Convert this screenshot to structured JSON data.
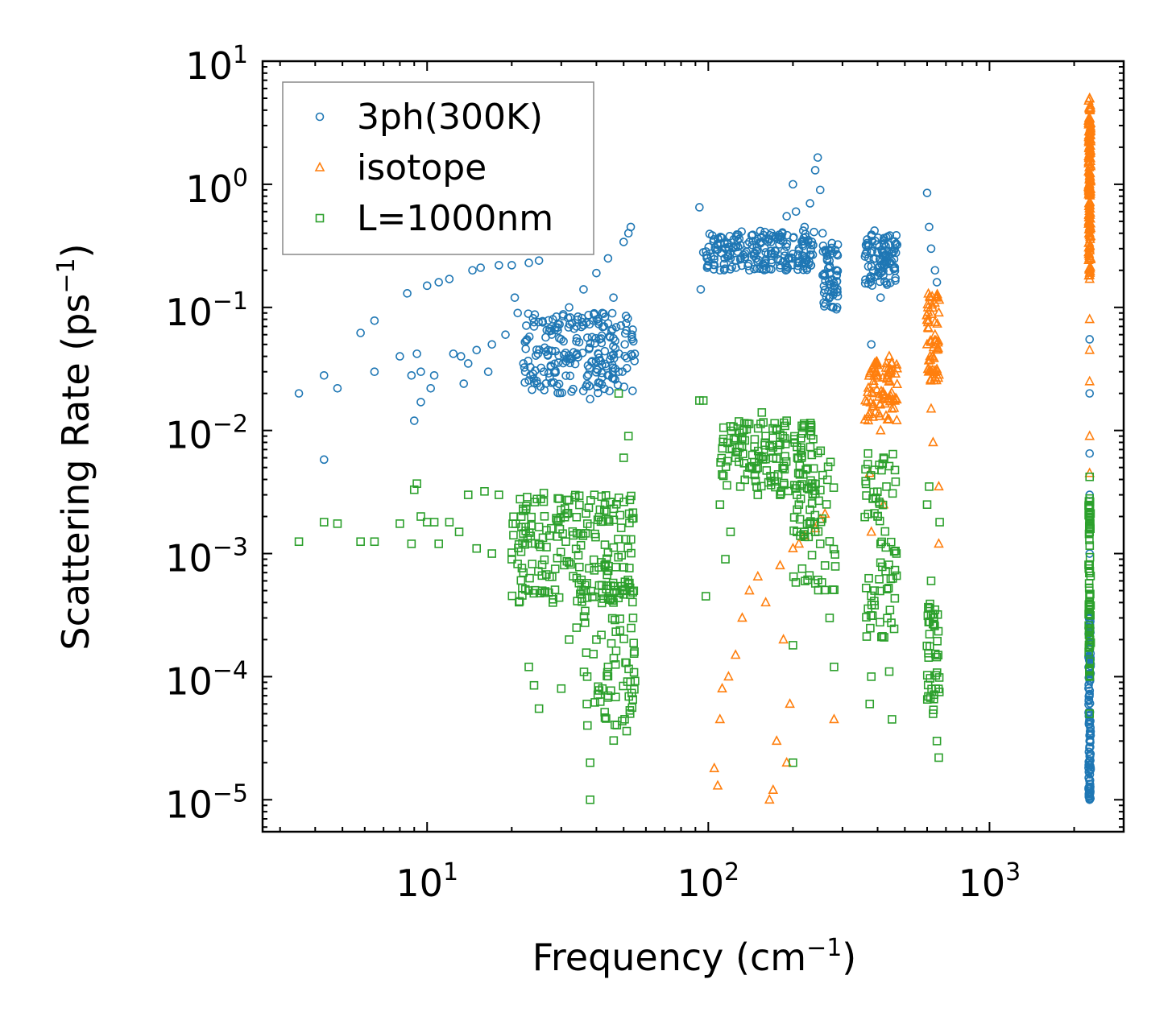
{
  "chart_data": {
    "type": "scatter",
    "title": "",
    "xlabel": "Frequency (cm",
    "xlabel_sup": "−1",
    "xlabel_end": ")",
    "ylabel": "Scattering Rate (ps",
    "ylabel_sup": "−1",
    "ylabel_end": ")",
    "xscale": "log",
    "yscale": "log",
    "xlim": [
      2.6,
      3000
    ],
    "ylim": [
      5.5e-06,
      10
    ],
    "x_ticks": [
      {
        "base": "10",
        "exp": "1",
        "value": 10
      },
      {
        "base": "10",
        "exp": "2",
        "value": 100
      },
      {
        "base": "10",
        "exp": "3",
        "value": 1000
      }
    ],
    "y_ticks": [
      {
        "base": "10",
        "exp": "1",
        "value": 10
      },
      {
        "base": "10",
        "exp": "0",
        "value": 1
      },
      {
        "base": "10",
        "exp": "−1",
        "value": 0.1
      },
      {
        "base": "10",
        "exp": "−2",
        "value": 0.01
      },
      {
        "base": "10",
        "exp": "−3",
        "value": 0.001
      },
      {
        "base": "10",
        "exp": "−4",
        "value": 0.0001
      },
      {
        "base": "10",
        "exp": "−5",
        "value": 1e-05
      }
    ],
    "legend_position": "top-left",
    "series": [
      {
        "name": "3ph(300K)",
        "marker": "circle",
        "color": "#1f77b4",
        "points": [
          [
            3.5,
            0.02
          ],
          [
            4.3,
            0.028
          ],
          [
            4.3,
            0.0058
          ],
          [
            4.8,
            0.022
          ],
          [
            5.8,
            0.062
          ],
          [
            6.5,
            0.078
          ],
          [
            6.5,
            0.03
          ],
          [
            8.0,
            0.04
          ],
          [
            8.5,
            0.13
          ],
          [
            8.8,
            0.028
          ],
          [
            9.0,
            0.012
          ],
          [
            9.2,
            0.042
          ],
          [
            9.5,
            0.017
          ],
          [
            9.5,
            0.03
          ],
          [
            10.0,
            0.15
          ],
          [
            10.3,
            0.022
          ],
          [
            10.6,
            0.028
          ],
          [
            11.0,
            0.16
          ],
          [
            12.0,
            0.17
          ],
          [
            12.4,
            0.042
          ],
          [
            13.2,
            0.04
          ],
          [
            13.5,
            0.024
          ],
          [
            14.0,
            0.035
          ],
          [
            14.5,
            0.2
          ],
          [
            15.0,
            0.045
          ],
          [
            15.5,
            0.21
          ],
          [
            16.5,
            0.03
          ],
          [
            17.0,
            0.05
          ],
          [
            18.0,
            0.22
          ],
          [
            19.0,
            0.06
          ],
          [
            20.0,
            0.22
          ],
          [
            20.5,
            0.12
          ],
          [
            21.0,
            0.09
          ],
          [
            22.0,
            0.035
          ],
          [
            23.0,
            0.23
          ],
          [
            24.0,
            0.07
          ],
          [
            25.0,
            0.24
          ],
          [
            26.0,
            0.03
          ],
          [
            27.0,
            0.045
          ],
          [
            28.0,
            0.08
          ],
          [
            30.0,
            0.055
          ],
          [
            32.0,
            0.1
          ],
          [
            34.0,
            0.07
          ],
          [
            36.0,
            0.14
          ],
          [
            38.0,
            0.018
          ],
          [
            40.0,
            0.19
          ],
          [
            42.0,
            0.09
          ],
          [
            44.0,
            0.25
          ],
          [
            46.0,
            0.12
          ],
          [
            48.0,
            0.03
          ],
          [
            50.0,
            0.34
          ],
          [
            52.0,
            0.4
          ],
          [
            53.0,
            0.45
          ],
          [
            53.5,
            0.06
          ],
          [
            93,
            0.65
          ],
          [
            94,
            0.14
          ],
          [
            96,
            0.28
          ],
          [
            100,
            0.22
          ],
          [
            105,
            0.26
          ],
          [
            110,
            0.2
          ],
          [
            115,
            0.3
          ],
          [
            120,
            0.25
          ],
          [
            130,
            0.32
          ],
          [
            140,
            0.2
          ],
          [
            150,
            0.36
          ],
          [
            160,
            0.28
          ],
          [
            170,
            0.38
          ],
          [
            180,
            0.22
          ],
          [
            190,
            0.55
          ],
          [
            200,
            1.0
          ],
          [
            205,
            0.6
          ],
          [
            210,
            0.3
          ],
          [
            220,
            0.45
          ],
          [
            230,
            0.7
          ],
          [
            240,
            1.3
          ],
          [
            245,
            1.65
          ],
          [
            250,
            0.9
          ],
          [
            255,
            0.4
          ],
          [
            260,
            0.18
          ],
          [
            270,
            0.12
          ],
          [
            280,
            0.15
          ],
          [
            285,
            0.2
          ],
          [
            370,
            0.32
          ],
          [
            375,
            0.17
          ],
          [
            380,
            0.05
          ],
          [
            390,
            0.42
          ],
          [
            400,
            0.28
          ],
          [
            410,
            0.12
          ],
          [
            420,
            0.35
          ],
          [
            440,
            0.23
          ],
          [
            460,
            0.3
          ],
          [
            600,
            0.85
          ],
          [
            610,
            0.45
          ],
          [
            620,
            0.3
          ],
          [
            640,
            0.2
          ],
          [
            650,
            0.16
          ],
          [
            2270,
            0.055
          ],
          [
            2270,
            0.02
          ],
          [
            2270,
            0.0065
          ],
          [
            2270,
            0.003
          ],
          [
            2270,
            0.001
          ],
          [
            2270,
            0.0003
          ],
          [
            2270,
            0.0001
          ],
          [
            2270,
            3e-05
          ],
          [
            2270,
            1e-05
          ]
        ],
        "clusters": [
          {
            "x": [
              22,
              55
            ],
            "y": [
              0.02,
              0.09
            ],
            "n": 220
          },
          {
            "x": [
              98,
              240
            ],
            "y": [
              0.2,
              0.42
            ],
            "n": 200
          },
          {
            "x": [
              360,
              470
            ],
            "y": [
              0.15,
              0.4
            ],
            "n": 90
          },
          {
            "x": [
              255,
              290
            ],
            "y": [
              0.09,
              0.35
            ],
            "n": 60
          },
          {
            "x": [
              2250,
              2290
            ],
            "y": [
              1e-05,
              0.0003
            ],
            "n": 120
          }
        ]
      },
      {
        "name": "isotope",
        "marker": "triangle",
        "color": "#ff7f0e",
        "points": [
          [
            105,
            1.8e-05
          ],
          [
            108,
            1.3e-05
          ],
          [
            110,
            4.5e-05
          ],
          [
            112,
            8e-05
          ],
          [
            118,
            0.0001
          ],
          [
            125,
            0.00015
          ],
          [
            132,
            0.0003
          ],
          [
            140,
            0.0005
          ],
          [
            150,
            0.00065
          ],
          [
            160,
            0.0004
          ],
          [
            165,
            1e-05
          ],
          [
            170,
            1.2e-05
          ],
          [
            175,
            3e-05
          ],
          [
            180,
            0.0008
          ],
          [
            185,
            0.0002
          ],
          [
            190,
            2e-05
          ],
          [
            195,
            6e-05
          ],
          [
            200,
            0.0011
          ],
          [
            210,
            0.0012
          ],
          [
            220,
            0.0014
          ],
          [
            240,
            0.0016
          ],
          [
            250,
            0.0019
          ],
          [
            260,
            0.0021
          ],
          [
            280,
            4.5e-05
          ],
          [
            370,
            0.013
          ],
          [
            375,
            0.0045
          ],
          [
            380,
            0.0015
          ],
          [
            385,
            0.02
          ],
          [
            390,
            0.035
          ],
          [
            400,
            0.028
          ],
          [
            410,
            0.01
          ],
          [
            420,
            0.0025
          ],
          [
            430,
            0.035
          ],
          [
            440,
            0.04
          ],
          [
            450,
            0.015
          ],
          [
            600,
            0.05
          ],
          [
            610,
            0.03
          ],
          [
            620,
            0.015
          ],
          [
            630,
            0.008
          ],
          [
            640,
            0.06
          ],
          [
            650,
            0.12
          ],
          [
            660,
            0.0035
          ],
          [
            660,
            0.0012
          ],
          [
            2270,
            0.08
          ],
          [
            2270,
            0.045
          ],
          [
            2270,
            0.025
          ],
          [
            2270,
            0.009
          ],
          [
            2270,
            0.0045
          ],
          [
            2270,
            0.17
          ],
          [
            2270,
            0.3
          ],
          [
            2270,
            1.0
          ],
          [
            2270,
            2.5
          ],
          [
            2270,
            5.0
          ]
        ],
        "clusters": [
          {
            "x": [
              360,
              470
            ],
            "y": [
              0.012,
              0.04
            ],
            "n": 80
          },
          {
            "x": [
              595,
              665
            ],
            "y": [
              0.025,
              0.13
            ],
            "n": 60
          },
          {
            "x": [
              2250,
              2290
            ],
            "y": [
              0.18,
              5.0
            ],
            "n": 160
          }
        ]
      },
      {
        "name": "L=1000nm",
        "marker": "square",
        "color": "#2ca02c",
        "points": [
          [
            3.5,
            0.00125
          ],
          [
            4.3,
            0.0018
          ],
          [
            4.8,
            0.00175
          ],
          [
            5.8,
            0.00125
          ],
          [
            6.5,
            0.00125
          ],
          [
            8.0,
            0.00175
          ],
          [
            8.8,
            0.0012
          ],
          [
            9.0,
            0.0033
          ],
          [
            9.2,
            0.0037
          ],
          [
            9.5,
            0.002
          ],
          [
            10.0,
            0.0018
          ],
          [
            10.6,
            0.0018
          ],
          [
            11.0,
            0.0012
          ],
          [
            12.0,
            0.0018
          ],
          [
            13.0,
            0.0015
          ],
          [
            14.0,
            0.003
          ],
          [
            15.0,
            0.0011
          ],
          [
            16.0,
            0.0032
          ],
          [
            17.0,
            0.001
          ],
          [
            18.0,
            0.003
          ],
          [
            20.0,
            0.0009
          ],
          [
            22.0,
            0.0007
          ],
          [
            23.0,
            0.00012
          ],
          [
            24.0,
            8.5e-05
          ],
          [
            25.0,
            5.5e-05
          ],
          [
            26.0,
            0.0031
          ],
          [
            28.0,
            0.0004
          ],
          [
            30.0,
            8e-05
          ],
          [
            32.0,
            0.0002
          ],
          [
            34.0,
            0.00025
          ],
          [
            36.0,
            0.0005
          ],
          [
            37.0,
            6e-05
          ],
          [
            38.0,
            2e-05
          ],
          [
            38.0,
            1e-05
          ],
          [
            40.0,
            0.0002
          ],
          [
            42.0,
            8e-05
          ],
          [
            44.0,
            0.00012
          ],
          [
            46.0,
            0.0004
          ],
          [
            48.0,
            0.02
          ],
          [
            50.0,
            0.006
          ],
          [
            52.0,
            0.009
          ],
          [
            54.0,
            0.0003
          ],
          [
            93,
            0.0175
          ],
          [
            96,
            0.0175
          ],
          [
            98,
            0.00045
          ],
          [
            110,
            0.0025
          ],
          [
            115,
            0.0009
          ],
          [
            120,
            0.0015
          ],
          [
            125,
            0.006
          ],
          [
            130,
            0.0035
          ],
          [
            140,
            0.005
          ],
          [
            150,
            0.003
          ],
          [
            155,
            0.014
          ],
          [
            160,
            0.009
          ],
          [
            170,
            0.006
          ],
          [
            180,
            0.003
          ],
          [
            190,
            0.012
          ],
          [
            200,
            0.00018
          ],
          [
            200,
            2e-05
          ],
          [
            210,
            0.0025
          ],
          [
            220,
            0.011
          ],
          [
            240,
            0.0015
          ],
          [
            250,
            0.0012
          ],
          [
            260,
            0.0008
          ],
          [
            270,
            0.0003
          ],
          [
            280,
            0.00012
          ],
          [
            370,
            0.0065
          ],
          [
            375,
            6e-05
          ],
          [
            380,
            0.0001
          ],
          [
            390,
            0.0005
          ],
          [
            400,
            0.002
          ],
          [
            410,
            0.0012
          ],
          [
            420,
            0.006
          ],
          [
            430,
            0.0035
          ],
          [
            440,
            0.00011
          ],
          [
            450,
            4.5e-05
          ],
          [
            600,
            0.0025
          ],
          [
            610,
            0.0035
          ],
          [
            620,
            0.0006
          ],
          [
            630,
            5e-05
          ],
          [
            640,
            0.00035
          ],
          [
            650,
            3e-05
          ],
          [
            660,
            2.2e-05
          ],
          [
            665,
            0.0018
          ],
          [
            2270,
            0.0042
          ],
          [
            2270,
            0.0028
          ],
          [
            2270,
            0.0015
          ],
          [
            2270,
            0.0008
          ],
          [
            2270,
            0.0004
          ],
          [
            2270,
            0.0002
          ],
          [
            2270,
            0.0001
          ],
          [
            2270,
            5e-05
          ]
        ],
        "clusters": [
          {
            "x": [
              20,
              55
            ],
            "y": [
              0.0004,
              0.003
            ],
            "n": 200
          },
          {
            "x": [
              35,
              55
            ],
            "y": [
              3e-05,
              0.0008
            ],
            "n": 80
          },
          {
            "x": [
              110,
              240
            ],
            "y": [
              0.003,
              0.012
            ],
            "n": 140
          },
          {
            "x": [
              200,
              285
            ],
            "y": [
              0.0005,
              0.007
            ],
            "n": 60
          },
          {
            "x": [
              360,
              470
            ],
            "y": [
              0.0002,
              0.0065
            ],
            "n": 70
          },
          {
            "x": [
              595,
              665
            ],
            "y": [
              5e-05,
              0.0004
            ],
            "n": 40
          },
          {
            "x": [
              2250,
              2290
            ],
            "y": [
              0.0001,
              0.003
            ],
            "n": 60
          }
        ]
      }
    ]
  }
}
